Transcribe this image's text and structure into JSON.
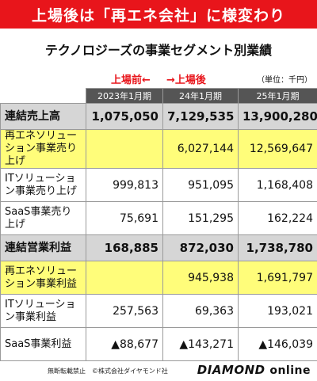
{
  "header": {
    "banner": "上場後は「再エネ会社」に様変わり",
    "subtitle": "テクノロジーズの事業セグメント別業績"
  },
  "annotations": {
    "before_listing": "上場前←",
    "after_listing": "→上場後",
    "unit": "（単位：千円）"
  },
  "table": {
    "columns": [
      "2023年1月期",
      "24年1月期",
      "25年1月期"
    ],
    "rows": [
      {
        "label": "連結売上高",
        "values": [
          "1,075,050",
          "7,129,535",
          "13,900,280"
        ]
      },
      {
        "label": "再エネソリューション事業売り上げ",
        "values": [
          "",
          "6,027,144",
          "12,569,647"
        ]
      },
      {
        "label": "ITソリューション事業売り上げ",
        "values": [
          "999,813",
          "951,095",
          "1,168,408"
        ]
      },
      {
        "label": "SaaS事業売り上げ",
        "values": [
          "75,691",
          "151,295",
          "162,224"
        ]
      },
      {
        "label": "連結営業利益",
        "values": [
          "168,885",
          "872,030",
          "1,738,780"
        ]
      },
      {
        "label": "再エネソリューション事業利益",
        "values": [
          "",
          "945,938",
          "1,691,797"
        ]
      },
      {
        "label": "ITソリューション事業利益",
        "values": [
          "257,563",
          "69,363",
          "193,021"
        ]
      },
      {
        "label": "SaaS事業利益",
        "values": [
          "▲88,677",
          "▲143,271",
          "▲146,039"
        ]
      }
    ]
  },
  "footer": {
    "notice": "無断転載禁止　©株式会社ダイヤモンド社",
    "logo_main": "DIAMOND",
    "logo_sub": "online"
  },
  "colors": {
    "banner": "#e8151b",
    "annotation": "#e8151b",
    "header_row": "#555555",
    "total_row": "#d6d6d6",
    "highlight_row": "#fffd7a"
  }
}
